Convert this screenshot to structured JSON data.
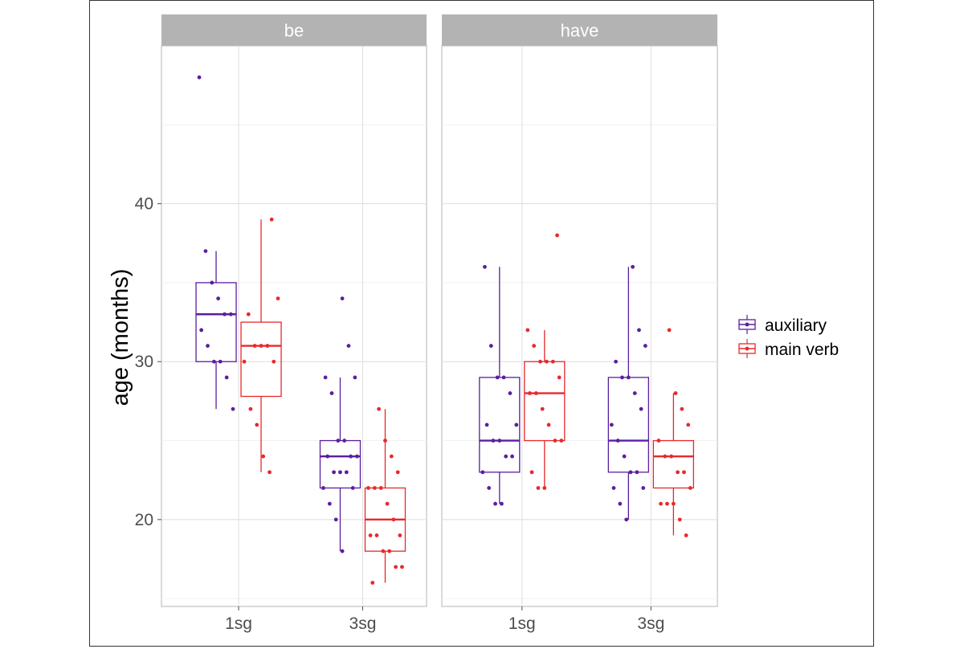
{
  "chart_data": {
    "type": "box",
    "ylabel": "age (months)",
    "xlabel": "",
    "ylim": [
      14.5,
      50
    ],
    "y_ticks": [
      20,
      30,
      40
    ],
    "y_tick_labels": [
      "20",
      "30",
      "40"
    ],
    "categories": [
      "1sg",
      "3sg"
    ],
    "facets": [
      "be",
      "have"
    ],
    "grid": true,
    "legend_position": "right",
    "series": [
      {
        "name": "auxiliary",
        "color": "#5b1f9e"
      },
      {
        "name": "main verb",
        "color": "#e8292b"
      }
    ],
    "boxes": [
      {
        "facet": "be",
        "category": "1sg",
        "series": "auxiliary",
        "q1": 30,
        "median": 33,
        "q3": 35,
        "whisker_low": 27,
        "whisker_high": 37,
        "outliers": [
          48
        ],
        "points": [
          48,
          37,
          35,
          34,
          33,
          33,
          32,
          31,
          30,
          30,
          29,
          27
        ]
      },
      {
        "facet": "be",
        "category": "1sg",
        "series": "main verb",
        "q1": 27.8,
        "median": 31,
        "q3": 32.5,
        "whisker_low": 23,
        "whisker_high": 39,
        "outliers": [],
        "points": [
          39,
          34,
          33,
          31,
          31,
          31,
          30,
          30,
          27,
          26,
          24,
          23
        ]
      },
      {
        "facet": "be",
        "category": "3sg",
        "series": "auxiliary",
        "q1": 22,
        "median": 24,
        "q3": 25,
        "whisker_low": 18,
        "whisker_high": 29,
        "outliers": [
          34,
          31
        ],
        "points": [
          34,
          31,
          29,
          29,
          28,
          25,
          25,
          24,
          24,
          24,
          23,
          23,
          23,
          22,
          22,
          21,
          20,
          18
        ]
      },
      {
        "facet": "be",
        "category": "3sg",
        "series": "main verb",
        "q1": 18,
        "median": 20,
        "q3": 22,
        "whisker_low": 16,
        "whisker_high": 27,
        "outliers": [],
        "points": [
          27,
          25,
          24,
          23,
          22,
          22,
          22,
          21,
          20,
          19,
          19,
          19,
          18,
          18,
          17,
          17,
          16
        ]
      },
      {
        "facet": "have",
        "category": "1sg",
        "series": "auxiliary",
        "q1": 23,
        "median": 25,
        "q3": 29,
        "whisker_low": 21,
        "whisker_high": 36,
        "outliers": [],
        "points": [
          36,
          31,
          29,
          29,
          28,
          26,
          26,
          25,
          25,
          24,
          24,
          23,
          22,
          21,
          21
        ]
      },
      {
        "facet": "have",
        "category": "1sg",
        "series": "main verb",
        "q1": 25,
        "median": 28,
        "q3": 30,
        "whisker_low": 22,
        "whisker_high": 32,
        "outliers": [
          38
        ],
        "points": [
          38,
          32,
          31,
          30,
          30,
          30,
          29,
          28,
          28,
          27,
          26,
          25,
          25,
          23,
          22,
          22
        ]
      },
      {
        "facet": "have",
        "category": "3sg",
        "series": "auxiliary",
        "q1": 23,
        "median": 25,
        "q3": 29,
        "whisker_low": 20,
        "whisker_high": 36,
        "outliers": [],
        "points": [
          36,
          32,
          31,
          30,
          29,
          29,
          28,
          27,
          26,
          25,
          24,
          23,
          23,
          22,
          22,
          21,
          20
        ]
      },
      {
        "facet": "have",
        "category": "3sg",
        "series": "main verb",
        "q1": 22,
        "median": 24,
        "q3": 25,
        "whisker_low": 19,
        "whisker_high": 28,
        "outliers": [
          32
        ],
        "points": [
          32,
          28,
          27,
          26,
          25,
          24,
          24,
          23,
          23,
          22,
          21,
          21,
          21,
          20,
          19
        ]
      }
    ]
  }
}
